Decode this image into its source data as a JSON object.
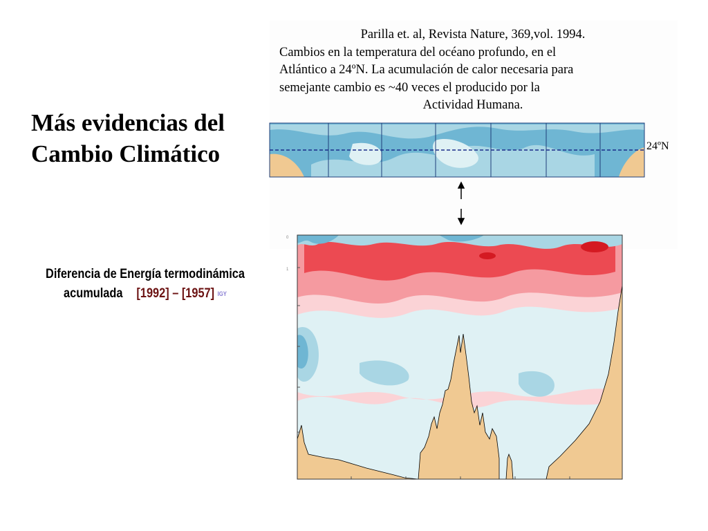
{
  "slide": {
    "title_lines": [
      "Más evidencias del",
      "Cambio Climático"
    ],
    "caption": {
      "line1": "Diferencia de Energía termodinámica",
      "line2_label": "acumulada",
      "years": "[1992] – [1957]",
      "igy": "IGY"
    }
  },
  "reference": {
    "lines": [
      "Parilla et. al, Revista Nature, 369,vol. 1994.",
      "Cambios en la temperatura del océano profundo, en el",
      "Atlántico a 24ºN. La acumulación de calor necesaria para",
      "semejante cambio es ~40 veces el producido por la",
      "Actividad Humana."
    ],
    "latitude_label": "24ºN"
  },
  "colors": {
    "ocean_light": "#dff1f4",
    "ocean_mid": "#a9d6e4",
    "ocean_dark": "#6fb6d3",
    "warm_light": "#fbd3d6",
    "warm_mid": "#f59aa0",
    "warm_strong": "#ec4a52",
    "warm_max": "#d41a22",
    "land": "#f0c992"
  }
}
